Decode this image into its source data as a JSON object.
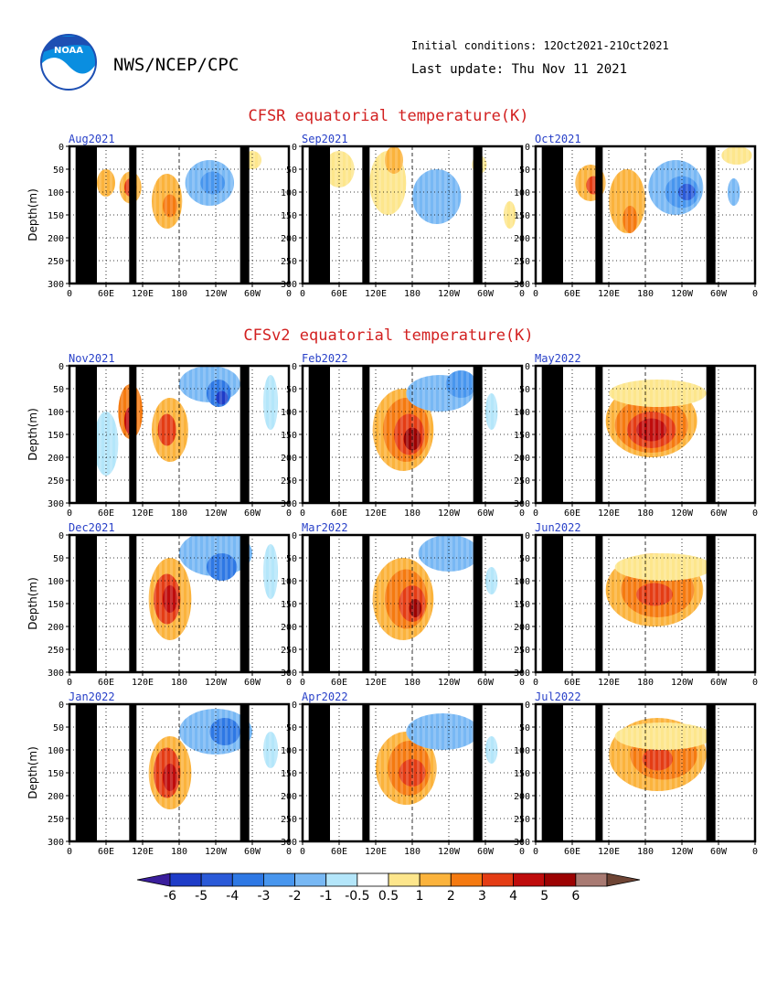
{
  "header": {
    "org": "NWS/NCEP/CPC",
    "logo_text": "NOAA",
    "initial_conditions": "Initial conditions: 12Oct2021-21Oct2021",
    "last_update": "Last update: Thu Nov 11 2021"
  },
  "chart_data": {
    "type": "heatmap",
    "sections": [
      {
        "title": "CFSR equatorial temperature(K)",
        "panels": [
          "Aug2021",
          "Sep2021",
          "Oct2021"
        ]
      },
      {
        "title": "CFSv2 equatorial temperature(K)",
        "panels": [
          "Nov2021",
          "Feb2022",
          "May2022",
          "Dec2021",
          "Mar2022",
          "Jun2022",
          "Jan2022",
          "Apr2022",
          "Jul2022"
        ]
      }
    ],
    "ylabel": "Depth(m)",
    "ylim": [
      0,
      300
    ],
    "y_ticks": [
      "0",
      "50",
      "100",
      "150",
      "200",
      "250",
      "300"
    ],
    "x_ticks": [
      "0",
      "60E",
      "120E",
      "180",
      "120W",
      "60W",
      "0"
    ],
    "x_tick_lon": [
      0,
      60,
      120,
      180,
      240,
      300,
      360
    ],
    "grid": true,
    "colorbar": {
      "labels": [
        "-6",
        "-5",
        "-4",
        "-3",
        "-2",
        "-1",
        "-0.5",
        "0.5",
        "1",
        "2",
        "3",
        "4",
        "5",
        "6"
      ],
      "colors": [
        "#3a1e9c",
        "#1e3cc8",
        "#2a5ad8",
        "#2e78e4",
        "#4896ee",
        "#78b8f4",
        "#b4e6fa",
        "#ffffff",
        "#fde68c",
        "#fbb33c",
        "#f57a10",
        "#e43c14",
        "#bf0c0c",
        "#9c0202",
        "#a87a72",
        "#6e4434"
      ]
    },
    "land_lon": [
      [
        10,
        45
      ],
      [
        98,
        110
      ],
      [
        280,
        295
      ]
    ],
    "notes": "Data is depth-longitude temperature anomaly fields along the equator"
  }
}
